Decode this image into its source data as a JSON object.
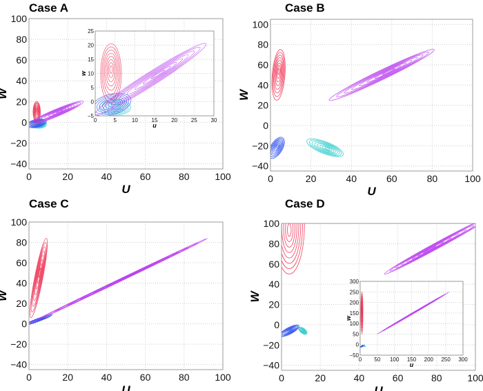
{
  "chart_data": [
    {
      "type": "contour",
      "title": "Case A",
      "xlabel": "U",
      "ylabel": "W",
      "xlim": [
        0,
        100
      ],
      "ylim": [
        -45,
        100
      ],
      "xticks": [
        0,
        20,
        40,
        60,
        80,
        100
      ],
      "yticks": [
        -40,
        -20,
        0,
        20,
        40,
        60,
        80,
        100
      ],
      "grid": true,
      "clusters": [
        {
          "color": "#33cccc",
          "center": [
            5,
            -2
          ],
          "tip": [
            9,
            -2
          ],
          "aspect": 0.5
        },
        {
          "color": "#3355ee",
          "center": [
            4,
            -1
          ],
          "tip": [
            9,
            1
          ],
          "aspect": 0.4
        },
        {
          "color": "#ee3355",
          "center": [
            4,
            10
          ],
          "tip": [
            4,
            20
          ],
          "aspect": 0.35
        },
        {
          "color": "#bb44ee",
          "center": [
            14,
            9
          ],
          "tip": [
            28,
            20
          ],
          "aspect": 0.12
        }
      ],
      "inset": {
        "xlabel": "u",
        "ylabel": "w",
        "xlim": [
          0,
          30
        ],
        "ylim": [
          -5,
          25
        ],
        "xticks": [
          0,
          5,
          10,
          15,
          20,
          25,
          30
        ],
        "yticks": [
          -5,
          0,
          5,
          10,
          15,
          20,
          25
        ],
        "clusters": [
          {
            "color": "#33cccc",
            "center": [
              5,
              -2
            ],
            "tip": [
              9,
              -2
            ],
            "aspect": 0.5
          },
          {
            "color": "#3355ee",
            "center": [
              4,
              -1
            ],
            "tip": [
              9,
              1
            ],
            "aspect": 0.5
          },
          {
            "color": "#ee3355",
            "center": [
              4,
              10
            ],
            "tip": [
              4,
              20.5
            ],
            "aspect": 0.35
          },
          {
            "color": "#bb44ee",
            "center": [
              14,
              8
            ],
            "tip": [
              28,
              20.5
            ],
            "aspect": 0.1
          }
        ]
      }
    },
    {
      "type": "contour",
      "title": "Case B",
      "xlabel": "U",
      "ylabel": "W",
      "xlim": [
        0,
        100
      ],
      "ylim": [
        -45,
        105
      ],
      "xticks": [
        0,
        20,
        40,
        60,
        80,
        100
      ],
      "yticks": [
        -40,
        -20,
        0,
        20,
        40,
        60,
        80,
        100
      ],
      "grid": true,
      "clusters": [
        {
          "color": "#ee3355",
          "center": [
            4,
            50
          ],
          "tip": [
            5,
            75
          ],
          "aspect": 0.25
        },
        {
          "color": "#bb44ee",
          "center": [
            55,
            50
          ],
          "tip": [
            81,
            75
          ],
          "aspect": 0.08
        },
        {
          "color": "#3355ee",
          "center": [
            3,
            -22
          ],
          "tip": [
            6,
            -12
          ],
          "aspect": 0.5
        },
        {
          "color": "#33cccc",
          "center": [
            27,
            -22
          ],
          "tip": [
            36,
            -29
          ],
          "aspect": 0.3
        }
      ]
    },
    {
      "type": "contour",
      "title": "Case C",
      "xlabel": "U",
      "ylabel": "W",
      "xlim": [
        0,
        100
      ],
      "ylim": [
        -45,
        100
      ],
      "xticks": [
        0,
        20,
        40,
        60,
        80,
        100
      ],
      "yticks": [
        -40,
        -20,
        0,
        20,
        40,
        60,
        80,
        100
      ],
      "grid": true,
      "clusters": [
        {
          "color": "#3355ee",
          "center": [
            5,
            4
          ],
          "tip": [
            12,
            9
          ],
          "aspect": 0.1
        },
        {
          "color": "#bb44ee",
          "center": [
            46,
            42
          ],
          "tip": [
            92,
            84
          ],
          "aspect": 0.012
        },
        {
          "color": "#ee3355",
          "center": [
            5,
            45
          ],
          "tip": [
            9,
            84
          ],
          "aspect": 0.1
        }
      ]
    },
    {
      "type": "contour",
      "title": "Case D",
      "xlabel": "U",
      "ylabel": "W",
      "xlim": [
        0,
        100
      ],
      "ylim": [
        -45,
        100
      ],
      "xticks": [
        0,
        20,
        40,
        60,
        80,
        100
      ],
      "yticks": [
        -40,
        -20,
        0,
        20,
        40,
        60,
        80,
        100
      ],
      "grid": true,
      "clusters": [
        {
          "color": "#ee3355",
          "center": [
            4,
            100
          ],
          "tip": [
            4,
            50
          ],
          "aspect": 0.3
        },
        {
          "color": "#bb44ee",
          "center": [
            80,
            78
          ],
          "tip": [
            53,
            50
          ],
          "aspect": 0.05
        },
        {
          "color": "#33cccc",
          "center": [
            11,
            -6
          ],
          "tip": [
            13,
            -9
          ],
          "aspect": 0.5
        },
        {
          "color": "#3355ee",
          "center": [
            4,
            -6
          ],
          "tip": [
            9,
            -1
          ],
          "aspect": 0.3
        }
      ],
      "inset": {
        "xlabel": "u",
        "ylabel": "w",
        "xlim": [
          0,
          300
        ],
        "ylim": [
          -50,
          300
        ],
        "xticks": [
          0,
          50,
          100,
          150,
          200,
          250,
          300
        ],
        "yticks": [
          -50,
          0,
          50,
          100,
          150,
          200,
          250,
          300
        ],
        "clusters": [
          {
            "color": "#ee3355",
            "center": [
              5,
              150
            ],
            "tip": [
              5,
              250
            ],
            "aspect": 0.05
          },
          {
            "color": "#bb44ee",
            "center": [
              155,
              150
            ],
            "tip": [
              260,
              250
            ],
            "aspect": 0.015
          },
          {
            "color": "#33cccc",
            "center": [
              12,
              -6
            ],
            "tip": [
              15,
              -9
            ],
            "aspect": 0.5
          },
          {
            "color": "#3355ee",
            "center": [
              5,
              -8
            ],
            "tip": [
              10,
              -3
            ],
            "aspect": 0.3
          }
        ]
      }
    }
  ]
}
